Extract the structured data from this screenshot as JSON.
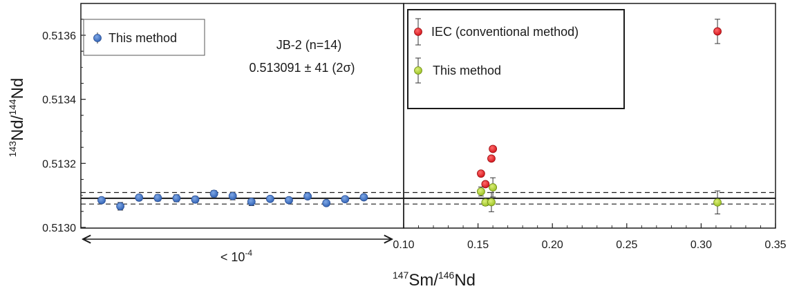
{
  "chart_data": {
    "type": "scatter",
    "xlabel": {
      "sup1": "147",
      "main1": "Sm/",
      "sup2": "146",
      "main2": "Nd"
    },
    "ylabel": {
      "sup1": "143",
      "main1": "Nd/",
      "sup2": "144",
      "main2": "Nd"
    },
    "ylim": [
      0.513,
      0.51368
    ],
    "y_ticks": [
      "0.5130",
      "0.5132",
      "0.5134",
      "0.5136"
    ],
    "y_tick_values": [
      0.513,
      0.5132,
      0.5134,
      0.5136
    ],
    "right_panel": {
      "xlim": [
        0.1,
        0.35
      ],
      "x_ticks": [
        "0.10",
        "0.15",
        "0.20",
        "0.25",
        "0.30",
        "0.35"
      ],
      "x_tick_values": [
        0.1,
        0.15,
        0.2,
        0.25,
        0.3,
        0.35
      ],
      "series": [
        {
          "name": "IEC (conventional method)",
          "color": "#e3131b",
          "points": [
            {
              "x": 0.152,
              "y": 0.513168,
              "err": 4e-06
            },
            {
              "x": 0.155,
              "y": 0.513135,
              "err": 4e-06
            },
            {
              "x": 0.159,
              "y": 0.513215,
              "err": 6e-06
            },
            {
              "x": 0.16,
              "y": 0.513245,
              "err": 6e-06
            },
            {
              "x": 0.311,
              "y": 0.513612,
              "err": 3.8e-05
            }
          ]
        },
        {
          "name": "This method",
          "color": "#a8cc2c",
          "points": [
            {
              "x": 0.152,
              "y": 0.513112,
              "err": 1.4e-05
            },
            {
              "x": 0.155,
              "y": 0.513078,
              "err": 1e-05
            },
            {
              "x": 0.159,
              "y": 0.513079,
              "err": 3e-05
            },
            {
              "x": 0.16,
              "y": 0.513125,
              "err": 3e-05
            },
            {
              "x": 0.311,
              "y": 0.513078,
              "err": 3.6e-05
            }
          ]
        }
      ]
    },
    "left_panel": {
      "x_label": "< 10",
      "x_label_sup": "-4",
      "series": [
        {
          "name": "This method",
          "color": "#3a6fc4",
          "points": [
            {
              "n": 1,
              "y": 0.513085,
              "err": 6e-06
            },
            {
              "n": 2,
              "y": 0.513066,
              "err": 1.2e-05
            },
            {
              "n": 3,
              "y": 0.513093,
              "err": 9e-06
            },
            {
              "n": 4,
              "y": 0.513092,
              "err": 1e-05
            },
            {
              "n": 5,
              "y": 0.513091,
              "err": 1.1e-05
            },
            {
              "n": 6,
              "y": 0.513087,
              "err": 1e-05
            },
            {
              "n": 7,
              "y": 0.513105,
              "err": 1e-05
            },
            {
              "n": 8,
              "y": 0.513098,
              "err": 1.2e-05
            },
            {
              "n": 9,
              "y": 0.51308,
              "err": 1.2e-05
            },
            {
              "n": 10,
              "y": 0.513089,
              "err": 6e-06
            },
            {
              "n": 11,
              "y": 0.513085,
              "err": 8e-06
            },
            {
              "n": 12,
              "y": 0.513097,
              "err": 5e-06
            },
            {
              "n": 13,
              "y": 0.513076,
              "err": 5e-06
            },
            {
              "n": 14,
              "y": 0.513088,
              "err": 5e-06
            },
            {
              "n": 15,
              "y": 0.513094,
              "err": 8e-06
            }
          ]
        }
      ]
    },
    "reference": {
      "mean": 0.513091,
      "upper": 0.513109,
      "lower": 0.513073
    },
    "annotation": {
      "line1": "JB-2 (n=14)",
      "line2": "0.513091 ± 41 (2σ)"
    },
    "legend_left": [
      "This method"
    ],
    "legend_right": [
      "IEC (conventional method)",
      "This method"
    ]
  }
}
